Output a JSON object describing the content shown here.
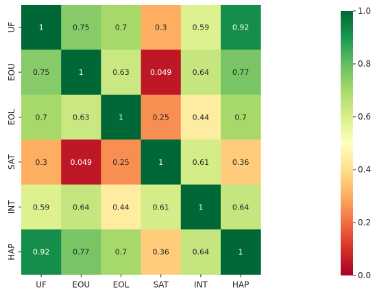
{
  "chart_data": {
    "type": "heatmap",
    "rows": [
      "UF",
      "EOU",
      "EOL",
      "SAT",
      "INT",
      "HAP"
    ],
    "columns": [
      "UF",
      "EOU",
      "EOL",
      "SAT",
      "INT",
      "HAP"
    ],
    "values": [
      [
        1,
        0.75,
        0.7,
        0.3,
        0.59,
        0.92
      ],
      [
        0.75,
        1,
        0.63,
        0.049,
        0.64,
        0.77
      ],
      [
        0.7,
        0.63,
        1,
        0.25,
        0.44,
        0.7
      ],
      [
        0.3,
        0.049,
        0.25,
        1,
        0.61,
        0.36
      ],
      [
        0.59,
        0.64,
        0.44,
        0.61,
        1,
        0.64
      ],
      [
        0.92,
        0.77,
        0.7,
        0.36,
        0.64,
        1
      ]
    ],
    "value_labels": [
      [
        "1",
        "0.75",
        "0.7",
        "0.3",
        "0.59",
        "0.92"
      ],
      [
        "0.75",
        "1",
        "0.63",
        "0.049",
        "0.64",
        "0.77"
      ],
      [
        "0.7",
        "0.63",
        "1",
        "0.25",
        "0.44",
        "0.7"
      ],
      [
        "0.3",
        "0.049",
        "0.25",
        "1",
        "0.61",
        "0.36"
      ],
      [
        "0.59",
        "0.64",
        "0.44",
        "0.61",
        "1",
        "0.64"
      ],
      [
        "0.92",
        "0.77",
        "0.7",
        "0.36",
        "0.64",
        "1"
      ]
    ],
    "colormap": "RdYlGn",
    "colormap_stops": [
      "#a50026",
      "#d73027",
      "#f46d43",
      "#fdae61",
      "#fee08b",
      "#ffffbf",
      "#d9ef8b",
      "#a6d96a",
      "#66bd63",
      "#1a9850",
      "#006837"
    ],
    "vmin": 0.0,
    "vmax": 1.0,
    "colorbar": {
      "ticks": [
        0.0,
        0.2,
        0.4,
        0.6,
        0.8,
        1.0
      ],
      "tick_labels": [
        "0.0",
        "0.2",
        "0.4",
        "0.6",
        "0.8",
        "1.0"
      ]
    },
    "title": "",
    "xlabel": "",
    "ylabel": ""
  }
}
